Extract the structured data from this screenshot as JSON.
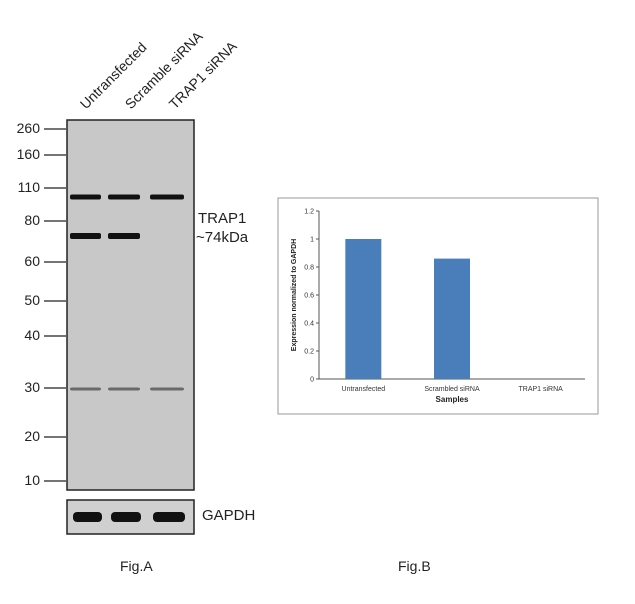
{
  "figA": {
    "caption": "Fig.A",
    "lanes": [
      "Untransfected",
      "Scramble siRNA",
      "TRAP1 siRNA"
    ],
    "mw_markers": [
      "260",
      "160",
      "110",
      "80",
      "60",
      "50",
      "40",
      "30",
      "20",
      "10"
    ],
    "target_label": "TRAP1",
    "target_size": "~74kDa",
    "loading_control_label": "GAPDH"
  },
  "figB": {
    "caption": "Fig.B"
  },
  "chart_data": {
    "type": "bar",
    "categories": [
      "Untransfected",
      "Scrambled siRNA",
      "TRAP1 siRNA"
    ],
    "values": [
      1.0,
      0.86,
      0.0
    ],
    "xlabel": "Samples",
    "ylabel": "Expression normalized to GAPDH",
    "ylim": [
      0,
      1.2
    ],
    "yticks": [
      "0",
      "0.2",
      "0.4",
      "0.6",
      "0.8",
      "1",
      "1.2"
    ],
    "grid": false,
    "bar_color": "#4a7ebb"
  }
}
